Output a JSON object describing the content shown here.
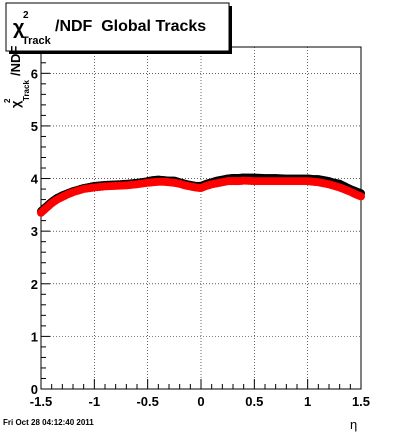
{
  "chart_data": {
    "type": "scatter",
    "title": "/NDF  Global Tracks",
    "title_symbol": "χ",
    "title_sup": "2",
    "title_sub": "Track",
    "ylabel": "/NDF",
    "ylabel_symbol": "χ",
    "ylabel_sup": "2",
    "ylabel_sub": "Track",
    "xlabel": "η",
    "xlim": [
      -1.5,
      1.5
    ],
    "ylim": [
      0,
      6.5
    ],
    "x_ticks": [
      -1.5,
      -1,
      -0.5,
      0,
      0.5,
      1,
      1.5
    ],
    "x_tick_labels": [
      "-1.5",
      "-1",
      "-0.5",
      "0",
      "0.5",
      "1",
      "1.5"
    ],
    "y_ticks": [
      0,
      1,
      2,
      3,
      4,
      5,
      6
    ],
    "y_tick_labels": [
      "0",
      "1",
      "2",
      "3",
      "4",
      "5",
      "6"
    ],
    "grid": true,
    "series": [
      {
        "color": "#000000",
        "x": [
          -1.5,
          -1.45,
          -1.4,
          -1.35,
          -1.3,
          -1.25,
          -1.2,
          -1.1,
          -1.0,
          -0.9,
          -0.8,
          -0.7,
          -0.6,
          -0.5,
          -0.45,
          -0.4,
          -0.35,
          -0.3,
          -0.25,
          -0.2,
          -0.15,
          -0.1,
          -0.05,
          0.0,
          0.05,
          0.1,
          0.15,
          0.2,
          0.25,
          0.3,
          0.35,
          0.4,
          0.5,
          0.6,
          0.7,
          0.8,
          0.9,
          1.0,
          1.05,
          1.1,
          1.15,
          1.2,
          1.25,
          1.3,
          1.35,
          1.4,
          1.45,
          1.5
        ],
        "y": [
          3.38,
          3.47,
          3.56,
          3.63,
          3.68,
          3.72,
          3.76,
          3.82,
          3.86,
          3.88,
          3.89,
          3.9,
          3.92,
          3.95,
          3.97,
          3.98,
          3.97,
          3.96,
          3.96,
          3.93,
          3.9,
          3.88,
          3.86,
          3.86,
          3.9,
          3.93,
          3.96,
          3.98,
          4.0,
          4.01,
          4.01,
          4.02,
          4.02,
          4.01,
          4.01,
          4.0,
          4.0,
          4.0,
          3.99,
          3.99,
          3.97,
          3.95,
          3.92,
          3.9,
          3.85,
          3.8,
          3.76,
          3.72
        ]
      },
      {
        "color": "#ff0000",
        "x": [
          -1.5,
          -1.45,
          -1.4,
          -1.35,
          -1.3,
          -1.25,
          -1.2,
          -1.1,
          -1.0,
          -0.9,
          -0.8,
          -0.7,
          -0.6,
          -0.5,
          -0.45,
          -0.4,
          -0.35,
          -0.3,
          -0.25,
          -0.2,
          -0.15,
          -0.1,
          -0.05,
          0.0,
          0.05,
          0.1,
          0.15,
          0.2,
          0.25,
          0.3,
          0.35,
          0.4,
          0.5,
          0.6,
          0.7,
          0.8,
          0.9,
          1.0,
          1.05,
          1.1,
          1.15,
          1.2,
          1.25,
          1.3,
          1.35,
          1.4,
          1.45,
          1.5
        ],
        "y": [
          3.35,
          3.44,
          3.53,
          3.6,
          3.65,
          3.7,
          3.74,
          3.8,
          3.83,
          3.85,
          3.86,
          3.87,
          3.89,
          3.92,
          3.93,
          3.94,
          3.94,
          3.93,
          3.92,
          3.9,
          3.87,
          3.85,
          3.83,
          3.82,
          3.86,
          3.89,
          3.91,
          3.93,
          3.95,
          3.95,
          3.95,
          3.96,
          3.95,
          3.95,
          3.95,
          3.95,
          3.95,
          3.95,
          3.94,
          3.93,
          3.91,
          3.89,
          3.86,
          3.83,
          3.79,
          3.75,
          3.7,
          3.66
        ]
      }
    ]
  },
  "footer": {
    "timestamp": "Fri Oct 28 04:12:40 2011"
  }
}
